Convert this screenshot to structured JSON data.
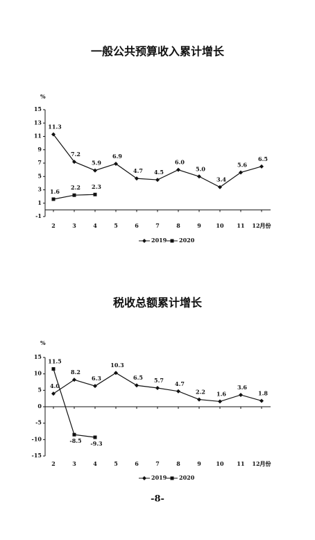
{
  "chart_data": [
    {
      "type": "line",
      "title": "一般公共预算收入累计增长",
      "y_label": "%",
      "categories": [
        "2",
        "3",
        "4",
        "5",
        "6",
        "7",
        "8",
        "9",
        "10",
        "11",
        "12月份"
      ],
      "ylim": [
        -1,
        15
      ],
      "yticks": [
        -1,
        1,
        3,
        5,
        7,
        9,
        11,
        13,
        15
      ],
      "series": [
        {
          "name": "2019",
          "color": "#111111",
          "marker": "diamond",
          "values": [
            11.3,
            7.2,
            5.9,
            6.9,
            4.7,
            4.5,
            6.0,
            5.0,
            3.4,
            5.6,
            6.5
          ],
          "value_labels": [
            "11.3",
            "7.2",
            "5.9",
            "6.9",
            "4.7",
            "4.5",
            "6.0",
            "5.0",
            "3.4",
            "5.6",
            "6.5"
          ]
        },
        {
          "name": "2020",
          "color": "#111111",
          "marker": "square",
          "values": [
            1.6,
            2.2,
            2.3,
            null,
            null,
            null,
            null,
            null,
            null,
            null,
            null
          ],
          "value_labels": [
            "1.6",
            "2.2",
            "2.3",
            null,
            null,
            null,
            null,
            null,
            null,
            null,
            null
          ]
        }
      ]
    },
    {
      "type": "line",
      "title": "税收总额累计增长",
      "y_label": "%",
      "categories": [
        "2",
        "3",
        "4",
        "5",
        "6",
        "7",
        "8",
        "9",
        "10",
        "11",
        "12月份"
      ],
      "ylim": [
        -15,
        15
      ],
      "yticks": [
        -15,
        -10,
        -5,
        0,
        5,
        10,
        15
      ],
      "series": [
        {
          "name": "2019",
          "color": "#111111",
          "marker": "diamond",
          "values": [
            4.0,
            8.2,
            6.3,
            10.3,
            6.5,
            5.7,
            4.7,
            2.2,
            1.6,
            3.6,
            1.8
          ],
          "value_labels": [
            "4.0",
            "8.2",
            "6.3",
            "10.3",
            "6.5",
            "5.7",
            "4.7",
            "2.2",
            "1.6",
            "3.6",
            "1.8"
          ]
        },
        {
          "name": "2020",
          "color": "#111111",
          "marker": "square",
          "values": [
            11.5,
            -8.5,
            -9.3,
            null,
            null,
            null,
            null,
            null,
            null,
            null,
            null
          ],
          "value_labels": [
            "11.5",
            "-8.5",
            "-9.3",
            null,
            null,
            null,
            null,
            null,
            null,
            null,
            null
          ]
        }
      ]
    }
  ],
  "page_number": "-8-"
}
